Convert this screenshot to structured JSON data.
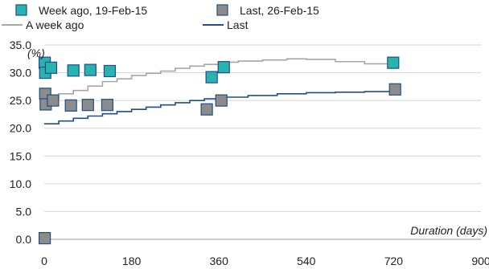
{
  "chart_data": {
    "type": "scatter",
    "y_unit": "(%)",
    "xlabel": "Duration (days)",
    "ylabel": "",
    "xlim": [
      0,
      900
    ],
    "ylim": [
      0,
      35
    ],
    "x_ticks": [
      "0",
      "180",
      "360",
      "540",
      "720",
      "900"
    ],
    "y_ticks": [
      "0.0",
      "5.0",
      "10.0",
      "15.0",
      "20.0",
      "25.0",
      "30.0",
      "35.0"
    ],
    "grid": "horizontal",
    "legend_position": "top",
    "series": [
      {
        "name": "Week ago, 19-Feb-15",
        "kind": "scatter",
        "marker": "square",
        "color": "#27b3b1",
        "points": [
          [
            1,
            31.8
          ],
          [
            2,
            30.0
          ],
          [
            14,
            30.9
          ],
          [
            60,
            30.4
          ],
          [
            95,
            30.5
          ],
          [
            135,
            30.3
          ],
          [
            345,
            29.2
          ],
          [
            370,
            31.0
          ],
          [
            719,
            31.8
          ]
        ]
      },
      {
        "name": "Last, 26-Feb-15",
        "kind": "scatter",
        "marker": "square",
        "color": "#8c8c8c",
        "points": [
          [
            1,
            0.2
          ],
          [
            2,
            26.2
          ],
          [
            3,
            24.3
          ],
          [
            18,
            25.0
          ],
          [
            55,
            24.1
          ],
          [
            90,
            24.2
          ],
          [
            130,
            24.2
          ],
          [
            335,
            23.4
          ],
          [
            365,
            25.0
          ],
          [
            723,
            27.0
          ]
        ]
      },
      {
        "name": "A week ago",
        "kind": "line",
        "color": "#a6a6a6",
        "points": [
          [
            0,
            25.3
          ],
          [
            30,
            26.2
          ],
          [
            60,
            26.8
          ],
          [
            90,
            27.6
          ],
          [
            120,
            28.4
          ],
          [
            150,
            28.9
          ],
          [
            180,
            29.5
          ],
          [
            210,
            29.9
          ],
          [
            240,
            30.3
          ],
          [
            270,
            30.8
          ],
          [
            300,
            31.2
          ],
          [
            330,
            31.5
          ],
          [
            360,
            31.9
          ],
          [
            400,
            32.1
          ],
          [
            450,
            32.3
          ],
          [
            500,
            32.5
          ],
          [
            540,
            32.4
          ],
          [
            600,
            32.0
          ],
          [
            660,
            31.6
          ],
          [
            720,
            31.0
          ]
        ]
      },
      {
        "name": "Last",
        "kind": "line",
        "color": "#1f4e88",
        "points": [
          [
            0,
            20.8
          ],
          [
            30,
            21.3
          ],
          [
            60,
            21.8
          ],
          [
            90,
            22.2
          ],
          [
            120,
            22.6
          ],
          [
            150,
            23.0
          ],
          [
            180,
            23.4
          ],
          [
            210,
            23.8
          ],
          [
            240,
            24.2
          ],
          [
            270,
            24.6
          ],
          [
            300,
            25.0
          ],
          [
            330,
            25.3
          ],
          [
            360,
            25.6
          ],
          [
            420,
            25.9
          ],
          [
            480,
            26.2
          ],
          [
            540,
            26.4
          ],
          [
            600,
            26.5
          ],
          [
            660,
            26.6
          ],
          [
            720,
            26.7
          ]
        ]
      }
    ]
  }
}
